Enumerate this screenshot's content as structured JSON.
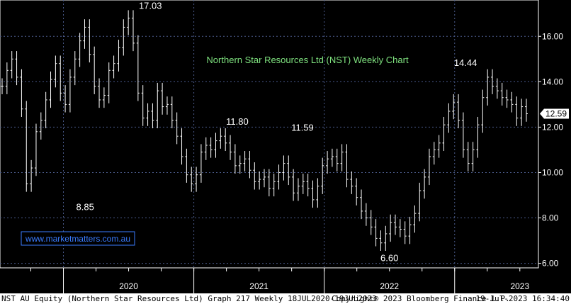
{
  "chart_data": {
    "type": "bar",
    "subtype": "ohlc-weekly",
    "title": "Northern Star Resources Ltd (NST) Weekly Chart",
    "ylim": [
      5.8,
      17.6
    ],
    "y_ticks": [
      "6.00",
      "8.00",
      "10.00",
      "12.00",
      "14.00",
      "16.00"
    ],
    "x_ticks": [
      "2020",
      "2021",
      "2022",
      "2023"
    ],
    "grid": true,
    "y_axis_position": "right",
    "annotations": [
      {
        "text": "17.03",
        "x": "2020-09",
        "y": 17.03
      },
      {
        "text": "8.85",
        "x": "2020-03",
        "y": 8.85
      },
      {
        "text": "11.80",
        "x": "2021-05",
        "y": 11.8
      },
      {
        "text": "11.59",
        "x": "2021-11",
        "y": 11.59
      },
      {
        "text": "6.60",
        "x": "2022-07",
        "y": 6.6
      },
      {
        "text": "14.44",
        "x": "2023-02",
        "y": 14.44
      }
    ],
    "last_price": "12.59",
    "series": [
      {
        "values": [
          13.8,
          14.5,
          15.0,
          14.2,
          12.8,
          9.5,
          10.2,
          11.8,
          12.3,
          13.2,
          14.1,
          14.8,
          13.5,
          13.0,
          14.2,
          15.0,
          15.8,
          16.4,
          15.2,
          13.8,
          13.2,
          13.4,
          14.5,
          14.8,
          15.5,
          16.4,
          16.8,
          15.7,
          13.5,
          12.4,
          12.7,
          12.3,
          13.6,
          12.9,
          13.0,
          12.3,
          11.6,
          10.7,
          9.9,
          9.5,
          9.9,
          10.9,
          11.2,
          11.0,
          11.4,
          11.6,
          11.3,
          10.9,
          10.3,
          10.4,
          10.6,
          10.1,
          9.6,
          9.7,
          9.8,
          9.3,
          9.6,
          10.0,
          10.4,
          9.8,
          9.1,
          9.4,
          9.6,
          9.3,
          8.8,
          9.4,
          10.3,
          10.6,
          10.7,
          10.4,
          10.9,
          9.7,
          9.4,
          8.9,
          8.3,
          8.0,
          7.6,
          7.1,
          6.9,
          7.3,
          7.8,
          7.6,
          7.5,
          7.2,
          7.7,
          8.2,
          9.2,
          9.8,
          10.7,
          11.0,
          11.3,
          12.1,
          12.7,
          13.1,
          12.3,
          11.0,
          10.4,
          11.0,
          12.1,
          13.3,
          14.2,
          13.8,
          13.6,
          13.3,
          13.2,
          13.0,
          12.4,
          12.9,
          12.59
        ]
      }
    ]
  },
  "watermark": "www.marketmatters.com.au",
  "footer": {
    "left": "NST AU Equity (Northern Star Resources Ltd) Graph 217  Weekly 18JUL2020-19JUL2023",
    "center": "Copyright® 2023 Bloomberg Finance L.P.",
    "right": "19-Jul-2023 16:34:40"
  },
  "colors": {
    "background": "#000000",
    "price_bars": "#ffffff",
    "grid": "#4a5a8a",
    "title": "#7fe27f",
    "watermark": "#3a7cff",
    "footer_bg": "#ffffff",
    "last_price_box": "#ffffff"
  }
}
